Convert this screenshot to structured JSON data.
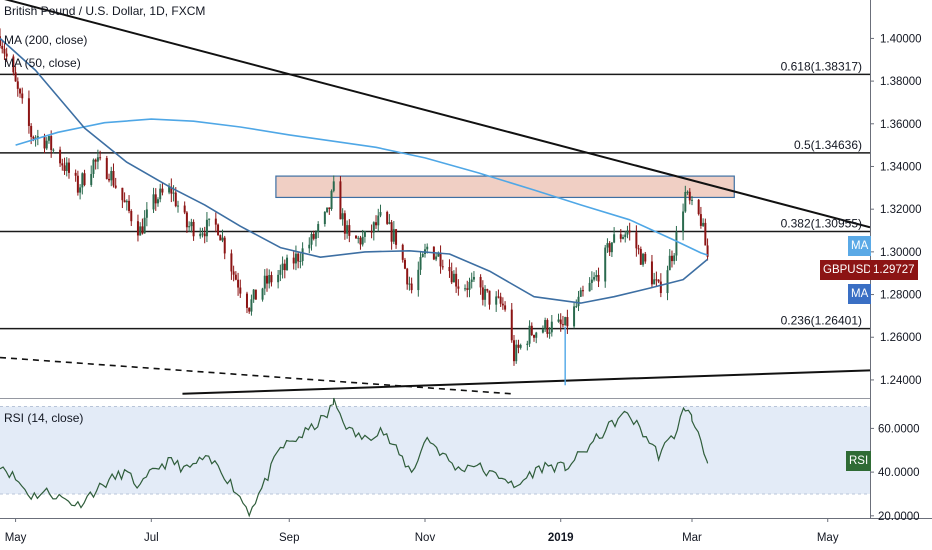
{
  "header": {
    "symbol_title": "British Pound / U.S. Dollar, 1D, FXCM",
    "ma200_label": "MA (200, close)",
    "ma50_label": "MA (50, close)",
    "rsi_label": "RSI (14, close)"
  },
  "tags": {
    "ma_upper": "MA",
    "pair": "GBPUSD",
    "price": "1.29727",
    "ma_lower": "MA",
    "rsi_value": "RSI"
  },
  "colors": {
    "ma200": "#4fa7e6",
    "ma50": "#3d6fa3",
    "candle_up": "#2a6a4e",
    "candle_down": "#8c1414",
    "rsi_line": "#2f5d3b",
    "rsi_band": "#e3ebf7",
    "zone_fill": "#f0cfc4",
    "pair_tag": "#8c1414",
    "ma_tag_upper": "#5aa9e6",
    "ma_tag_lower": "#3a6fc4",
    "rsi_tag": "#2f6b35"
  },
  "chart_data": [
    {
      "type": "candlestick",
      "title": "British Pound / U.S. Dollar, 1D, FXCM",
      "y_ticks": [
        "1.40000",
        "1.38000",
        "1.36000",
        "1.34000",
        "1.32000",
        "1.30000",
        "1.28000",
        "1.26000",
        "1.24000"
      ],
      "ylim": [
        1.232,
        1.418
      ],
      "x_ticks": [
        "May",
        "Jul",
        "Sep",
        "Nov",
        "2019",
        "Mar",
        "May"
      ],
      "x_tick_dates": [
        "2018-05-01",
        "2018-07-01",
        "2018-09-01",
        "2018-11-01",
        "2019-01-01",
        "2019-03-01",
        "2019-05-01"
      ],
      "xlim": [
        "2018-04-24",
        "2019-05-20"
      ],
      "fib_levels": [
        {
          "label": "0.618(1.38317)",
          "value": 1.38317
        },
        {
          "label": "0.5(1.34636)",
          "value": 1.34636
        },
        {
          "label": "0.382(1.30955)",
          "value": 1.30955
        },
        {
          "label": "0.236(1.26401)",
          "value": 1.26401
        }
      ],
      "resistance_zone": {
        "from": "2018-08-26",
        "to": "2019-03-20",
        "low": 1.3255,
        "high": 1.3355
      },
      "trendlines": [
        {
          "name": "descending",
          "style": "solid",
          "points": [
            [
              "2018-04-24",
              1.419
            ],
            [
              "2019-05-20",
              1.3115
            ]
          ]
        },
        {
          "name": "ascending",
          "style": "solid",
          "points": [
            [
              "2018-07-15",
              1.2335
            ],
            [
              "2019-05-20",
              1.2445
            ]
          ]
        },
        {
          "name": "lower dashed",
          "style": "dashed",
          "points": [
            [
              "2018-04-24",
              1.2505
            ],
            [
              "2018-12-10",
              1.2335
            ]
          ]
        }
      ],
      "series": [
        {
          "name": "MA (200, close)",
          "points": [
            [
              "2018-05-01",
              1.35
            ],
            [
              "2018-05-20",
              1.356
            ],
            [
              "2018-06-10",
              1.3605
            ],
            [
              "2018-07-01",
              1.3622
            ],
            [
              "2018-07-20",
              1.3612
            ],
            [
              "2018-08-10",
              1.3585
            ],
            [
              "2018-09-01",
              1.3548
            ],
            [
              "2018-09-20",
              1.352
            ],
            [
              "2018-10-10",
              1.349
            ],
            [
              "2018-11-01",
              1.344
            ],
            [
              "2018-11-25",
              1.337
            ],
            [
              "2018-12-20",
              1.329
            ],
            [
              "2019-01-10",
              1.322
            ],
            [
              "2019-02-01",
              1.315
            ],
            [
              "2019-02-20",
              1.306
            ],
            [
              "2019-03-05",
              1.2995
            ],
            [
              "2019-03-08",
              1.2985
            ]
          ]
        },
        {
          "name": "MA (50, close)",
          "points": [
            [
              "2018-04-24",
              1.4
            ],
            [
              "2018-05-10",
              1.385
            ],
            [
              "2018-06-01",
              1.358
            ],
            [
              "2018-06-20",
              1.342
            ],
            [
              "2018-07-10",
              1.33
            ],
            [
              "2018-07-25",
              1.322
            ],
            [
              "2018-08-10",
              1.312
            ],
            [
              "2018-08-28",
              1.302
            ],
            [
              "2018-09-15",
              1.2975
            ],
            [
              "2018-10-05",
              1.3
            ],
            [
              "2018-10-25",
              1.3005
            ],
            [
              "2018-11-12",
              1.299
            ],
            [
              "2018-11-30",
              1.291
            ],
            [
              "2018-12-20",
              1.279
            ],
            [
              "2019-01-10",
              1.276
            ],
            [
              "2019-01-25",
              1.279
            ],
            [
              "2019-02-10",
              1.283
            ],
            [
              "2019-02-25",
              1.287
            ],
            [
              "2019-03-08",
              1.2965
            ]
          ]
        },
        {
          "name": "GBPUSD close",
          "points": [
            [
              "2018-04-24",
              1.401
            ],
            [
              "2018-05-01",
              1.378
            ],
            [
              "2018-05-08",
              1.355
            ],
            [
              "2018-05-15",
              1.352
            ],
            [
              "2018-05-22",
              1.342
            ],
            [
              "2018-05-29",
              1.33
            ],
            [
              "2018-06-05",
              1.342
            ],
            [
              "2018-06-12",
              1.338
            ],
            [
              "2018-06-19",
              1.322
            ],
            [
              "2018-06-26",
              1.31
            ],
            [
              "2018-07-03",
              1.325
            ],
            [
              "2018-07-10",
              1.329
            ],
            [
              "2018-07-17",
              1.312
            ],
            [
              "2018-07-24",
              1.311
            ],
            [
              "2018-07-31",
              1.312
            ],
            [
              "2018-08-07",
              1.29
            ],
            [
              "2018-08-14",
              1.275
            ],
            [
              "2018-08-21",
              1.285
            ],
            [
              "2018-08-28",
              1.29
            ],
            [
              "2018-09-04",
              1.297
            ],
            [
              "2018-09-11",
              1.305
            ],
            [
              "2018-09-18",
              1.317
            ],
            [
              "2018-09-21",
              1.329
            ],
            [
              "2018-09-28",
              1.305
            ],
            [
              "2018-10-05",
              1.306
            ],
            [
              "2018-10-12",
              1.315
            ],
            [
              "2018-10-19",
              1.306
            ],
            [
              "2018-10-26",
              1.282
            ],
            [
              "2018-11-02",
              1.302
            ],
            [
              "2018-11-09",
              1.297
            ],
            [
              "2018-11-16",
              1.285
            ],
            [
              "2018-11-23",
              1.284
            ],
            [
              "2018-11-30",
              1.278
            ],
            [
              "2018-12-07",
              1.274
            ],
            [
              "2018-12-11",
              1.251
            ],
            [
              "2018-12-18",
              1.262
            ],
            [
              "2018-12-25",
              1.265
            ],
            [
              "2019-01-02",
              1.265
            ],
            [
              "2019-01-03",
              1.265
            ],
            [
              "2019-01-10",
              1.278
            ],
            [
              "2019-01-17",
              1.288
            ],
            [
              "2019-01-24",
              1.305
            ],
            [
              "2019-01-31",
              1.31
            ],
            [
              "2019-02-07",
              1.296
            ],
            [
              "2019-02-14",
              1.282
            ],
            [
              "2019-02-21",
              1.302
            ],
            [
              "2019-02-26",
              1.327
            ],
            [
              "2019-03-01",
              1.32
            ],
            [
              "2019-03-05",
              1.315
            ],
            [
              "2019-03-08",
              1.2973
            ]
          ]
        }
      ]
    },
    {
      "type": "line",
      "title": "RSI (14, close)",
      "y_ticks": [
        "60.0000",
        "40.0000",
        "20.0000"
      ],
      "ylim": [
        19,
        73
      ],
      "band": [
        30,
        70
      ],
      "series": [
        {
          "name": "RSI (14, close)",
          "points": [
            [
              "2018-04-24",
              44
            ],
            [
              "2018-05-01",
              37
            ],
            [
              "2018-05-08",
              29
            ],
            [
              "2018-05-15",
              31
            ],
            [
              "2018-05-22",
              28
            ],
            [
              "2018-05-29",
              25
            ],
            [
              "2018-06-05",
              31
            ],
            [
              "2018-06-12",
              36
            ],
            [
              "2018-06-19",
              40
            ],
            [
              "2018-06-26",
              33
            ],
            [
              "2018-07-03",
              42
            ],
            [
              "2018-07-10",
              45
            ],
            [
              "2018-07-17",
              41
            ],
            [
              "2018-07-24",
              46
            ],
            [
              "2018-07-31",
              43
            ],
            [
              "2018-08-07",
              33
            ],
            [
              "2018-08-14",
              22
            ],
            [
              "2018-08-21",
              35
            ],
            [
              "2018-08-28",
              51
            ],
            [
              "2018-09-04",
              55
            ],
            [
              "2018-09-11",
              60
            ],
            [
              "2018-09-18",
              66
            ],
            [
              "2018-09-21",
              72
            ],
            [
              "2018-09-28",
              59
            ],
            [
              "2018-10-05",
              55
            ],
            [
              "2018-10-12",
              60
            ],
            [
              "2018-10-19",
              50
            ],
            [
              "2018-10-26",
              40
            ],
            [
              "2018-11-02",
              56
            ],
            [
              "2018-11-09",
              48
            ],
            [
              "2018-11-16",
              41
            ],
            [
              "2018-11-23",
              44
            ],
            [
              "2018-11-30",
              39
            ],
            [
              "2018-12-07",
              38
            ],
            [
              "2018-12-11",
              32
            ],
            [
              "2018-12-18",
              39
            ],
            [
              "2018-12-25",
              43
            ],
            [
              "2019-01-03",
              42
            ],
            [
              "2019-01-10",
              48
            ],
            [
              "2019-01-17",
              55
            ],
            [
              "2019-01-24",
              62
            ],
            [
              "2019-01-31",
              67
            ],
            [
              "2019-02-07",
              58
            ],
            [
              "2019-02-14",
              48
            ],
            [
              "2019-02-21",
              57
            ],
            [
              "2019-02-26",
              70
            ],
            [
              "2019-03-01",
              64
            ],
            [
              "2019-03-05",
              56
            ],
            [
              "2019-03-08",
              44
            ]
          ]
        }
      ]
    }
  ]
}
